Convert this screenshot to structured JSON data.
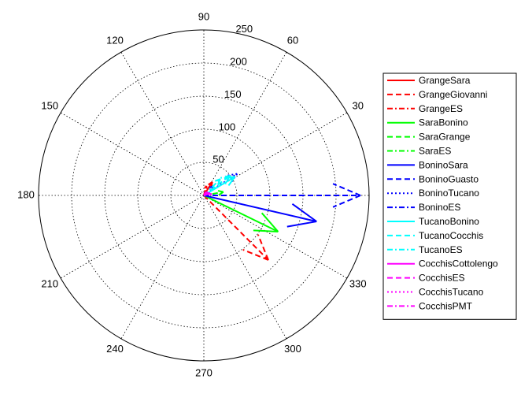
{
  "chart_data": {
    "type": "compass",
    "title": "",
    "angle_ticks": [
      {
        "deg": 0,
        "label": ""
      },
      {
        "deg": 30,
        "label": "30"
      },
      {
        "deg": 60,
        "label": "60"
      },
      {
        "deg": 90,
        "label": "90"
      },
      {
        "deg": 120,
        "label": "120"
      },
      {
        "deg": 150,
        "label": "150"
      },
      {
        "deg": 180,
        "label": "180"
      },
      {
        "deg": 210,
        "label": "210"
      },
      {
        "deg": 240,
        "label": "240"
      },
      {
        "deg": 270,
        "label": "270"
      },
      {
        "deg": 300,
        "label": "300"
      },
      {
        "deg": 330,
        "label": "330"
      }
    ],
    "radial_ticks": [
      50,
      100,
      150,
      200,
      250
    ],
    "r_max": 250,
    "grid": true,
    "legend_position": "right",
    "series": [
      {
        "name": "GrangeSara",
        "color": "#ff0000",
        "dash": "solid",
        "r": 24,
        "theta": 58
      },
      {
        "name": "GrangeGiovanni",
        "color": "#ff0000",
        "dash": "dashed",
        "r": 138,
        "theta": -45
      },
      {
        "name": "GrangeES",
        "color": "#ff0000",
        "dash": "dashdot",
        "r": 15,
        "theta": 75
      },
      {
        "name": "SaraBonino",
        "color": "#00ff00",
        "dash": "solid",
        "r": 125,
        "theta": -26
      },
      {
        "name": "SaraGrange",
        "color": "#00ff00",
        "dash": "dashed",
        "r": 30,
        "theta": 10
      },
      {
        "name": "SaraES",
        "color": "#00ff00",
        "dash": "dashdot",
        "r": 10,
        "theta": 25
      },
      {
        "name": "BoninoSara",
        "color": "#0000ff",
        "dash": "solid",
        "r": 175,
        "theta": -13
      },
      {
        "name": "BoninoGuasto",
        "color": "#0000ff",
        "dash": "dashed",
        "r": 237,
        "theta": 0
      },
      {
        "name": "BoninoTucano",
        "color": "#0000ff",
        "dash": "dotted",
        "r": 60,
        "theta": 33
      },
      {
        "name": "BoninoES",
        "color": "#0000ff",
        "dash": "dashdot",
        "r": 20,
        "theta": 45
      },
      {
        "name": "TucanoBonino",
        "color": "#00ffff",
        "dash": "solid",
        "r": 55,
        "theta": 31
      },
      {
        "name": "TucanoCocchis",
        "color": "#00ffff",
        "dash": "dashed",
        "r": 50,
        "theta": 37
      },
      {
        "name": "TucanoES",
        "color": "#00ffff",
        "dash": "dashdot",
        "r": 35,
        "theta": 45
      },
      {
        "name": "CocchisCottolengo",
        "color": "#ff00ff",
        "dash": "solid",
        "r": 10,
        "theta": 20
      },
      {
        "name": "CocchisES",
        "color": "#ff00ff",
        "dash": "dashed",
        "r": 8,
        "theta": 40
      },
      {
        "name": "CocchisTucano",
        "color": "#ff00ff",
        "dash": "dotted",
        "r": 12,
        "theta": 10
      },
      {
        "name": "CocchisPMT",
        "color": "#ff00ff",
        "dash": "dashdot",
        "r": 6,
        "theta": 60
      }
    ]
  }
}
